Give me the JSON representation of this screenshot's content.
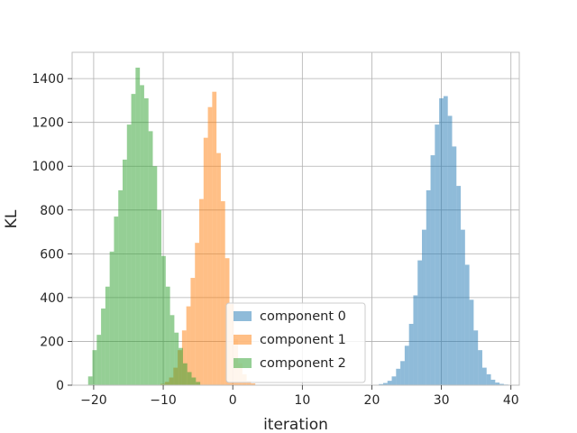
{
  "chart_data": {
    "type": "histogram",
    "title": "",
    "xlabel": "iteration",
    "ylabel": "KL",
    "xlim": [
      -23.1,
      41.2
    ],
    "ylim": [
      0,
      1520
    ],
    "xticks": [
      -20,
      -10,
      0,
      10,
      20,
      30,
      40
    ],
    "yticks": [
      0,
      200,
      400,
      600,
      800,
      1000,
      1200,
      1400
    ],
    "grid": true,
    "legend_position": "lower center",
    "bin_width": 0.62,
    "series": [
      {
        "name": "component 0",
        "color": "#1f77b4",
        "bin_start": 21.0,
        "counts": [
          5,
          10,
          20,
          40,
          75,
          110,
          180,
          280,
          410,
          570,
          710,
          890,
          1050,
          1190,
          1310,
          1320,
          1230,
          1090,
          910,
          710,
          550,
          390,
          250,
          160,
          80,
          50,
          25,
          12,
          6,
          3
        ]
      },
      {
        "name": "component 1",
        "color": "#ff7f0e",
        "bin_start": -10.4,
        "counts": [
          6,
          15,
          35,
          80,
          160,
          250,
          360,
          490,
          650,
          850,
          1130,
          1270,
          1340,
          1060,
          840,
          580,
          370,
          210,
          100,
          50,
          20,
          8
        ]
      },
      {
        "name": "component 2",
        "color": "#2ca02c",
        "bin_start": -20.8,
        "counts": [
          40,
          160,
          230,
          350,
          450,
          610,
          770,
          890,
          1030,
          1190,
          1330,
          1450,
          1370,
          1310,
          1160,
          1000,
          800,
          590,
          450,
          320,
          240,
          170,
          100,
          60,
          35,
          15
        ]
      }
    ]
  }
}
